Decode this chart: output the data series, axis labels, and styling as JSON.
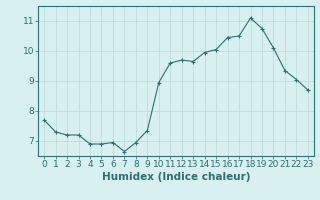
{
  "x": [
    0,
    1,
    2,
    3,
    4,
    5,
    6,
    7,
    8,
    9,
    10,
    11,
    12,
    13,
    14,
    15,
    16,
    17,
    18,
    19,
    20,
    21,
    22,
    23
  ],
  "y": [
    7.7,
    7.3,
    7.2,
    7.2,
    6.9,
    6.9,
    6.95,
    6.65,
    6.95,
    7.35,
    8.95,
    9.6,
    9.7,
    9.65,
    9.95,
    10.05,
    10.45,
    10.5,
    11.1,
    10.75,
    10.1,
    9.35,
    9.05,
    8.7
  ],
  "line_color": "#2e7070",
  "marker": "+",
  "marker_size": 3,
  "bg_color": "#d8f0f0",
  "grid_color": "#b8d8d8",
  "xlabel": "Humidex (Indice chaleur)",
  "xlim": [
    -0.5,
    23.5
  ],
  "ylim": [
    6.5,
    11.5
  ],
  "yticks": [
    7,
    8,
    9,
    10,
    11
  ],
  "xticks": [
    0,
    1,
    2,
    3,
    4,
    5,
    6,
    7,
    8,
    9,
    10,
    11,
    12,
    13,
    14,
    15,
    16,
    17,
    18,
    19,
    20,
    21,
    22,
    23
  ],
  "tick_color": "#2e7070",
  "label_fontsize": 7.5,
  "tick_fontsize": 6.5
}
